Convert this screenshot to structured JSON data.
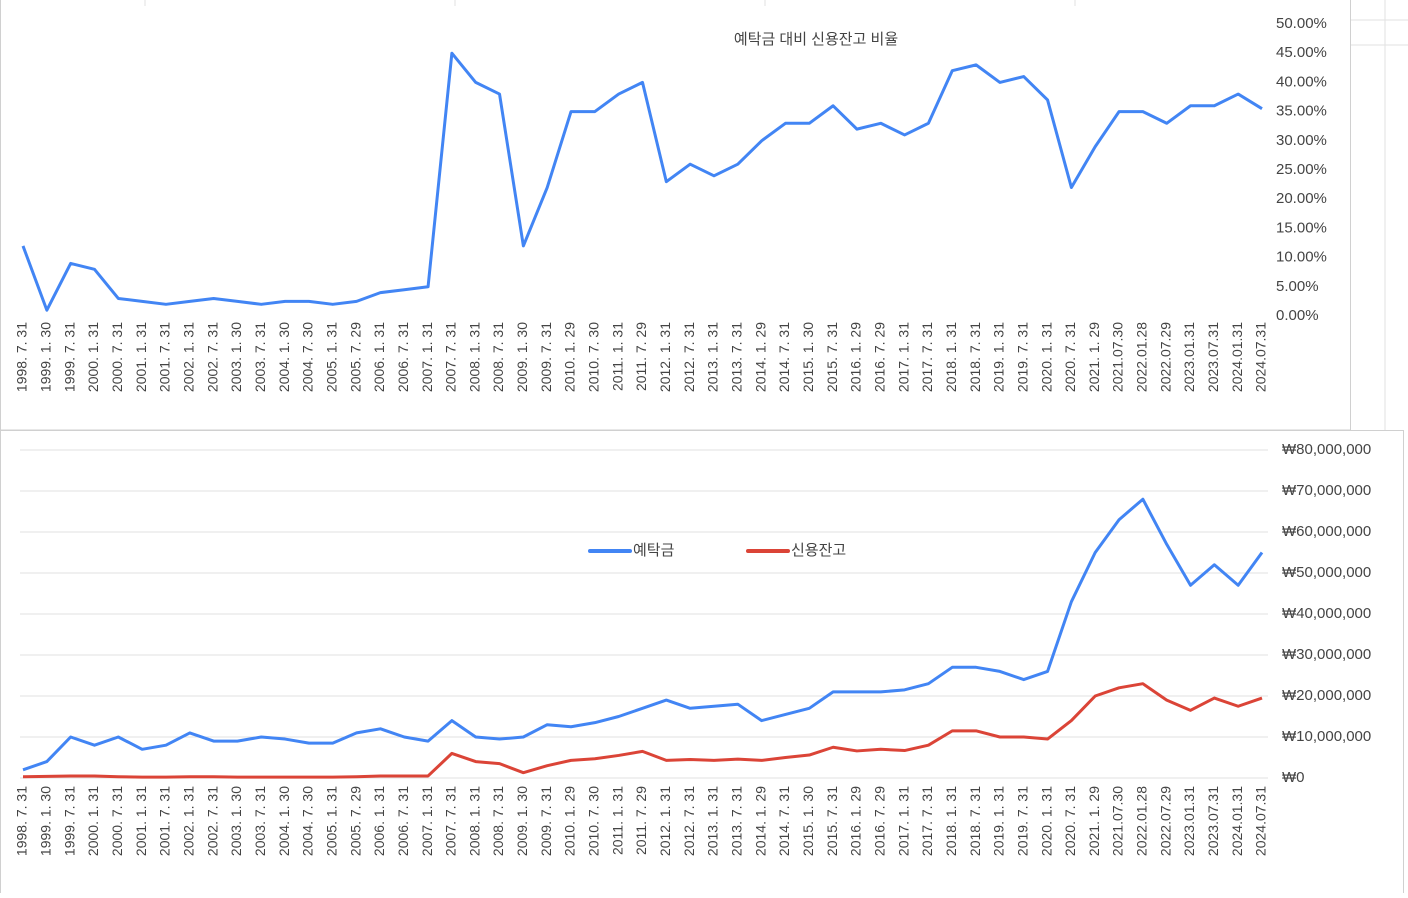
{
  "chart_data": [
    {
      "type": "line",
      "title": "예탁금 대비 신용잔고 비율",
      "categories": [
        "1998. 7. 31",
        "1999. 1. 30",
        "1999. 7. 31",
        "2000. 1. 31",
        "2000. 7. 31",
        "2001. 1. 31",
        "2001. 7. 31",
        "2002. 1. 31",
        "2002. 7. 31",
        "2003. 1. 30",
        "2003. 7. 31",
        "2004. 1. 30",
        "2004. 7. 30",
        "2005. 1. 31",
        "2005. 7. 29",
        "2006. 1. 31",
        "2006. 7. 31",
        "2007. 1. 31",
        "2007. 7. 31",
        "2008. 1. 31",
        "2008. 7. 31",
        "2009. 1. 30",
        "2009. 7. 31",
        "2010. 1. 29",
        "2010. 7. 30",
        "2011. 1. 31",
        "2011. 7. 29",
        "2012. 1. 31",
        "2012. 7. 31",
        "2013. 1. 31",
        "2013. 7. 31",
        "2014. 1. 29",
        "2014. 7. 31",
        "2015. 1. 30",
        "2015. 7. 31",
        "2016. 1. 29",
        "2016. 7. 29",
        "2017. 1. 31",
        "2017. 7. 31",
        "2018. 1. 31",
        "2018. 7. 31",
        "2019. 1. 31",
        "2019. 7. 31",
        "2020. 1. 31",
        "2020. 7. 31",
        "2021. 1. 29",
        "2021.07.30",
        "2022.01.28",
        "2022.07.29",
        "2023.01.31",
        "2023.07.31",
        "2024.01.31",
        "2024.07.31"
      ],
      "values": [
        12,
        1,
        9,
        8,
        3,
        2.5,
        2,
        2.5,
        3,
        2.5,
        2,
        2.5,
        2.5,
        2,
        2.5,
        4,
        4.5,
        5,
        45,
        40,
        38,
        12,
        22,
        35,
        35,
        38,
        40,
        23,
        26,
        24,
        26,
        30,
        33,
        33,
        36,
        32,
        33,
        31,
        33,
        42,
        43,
        40,
        41,
        37,
        22,
        29,
        35,
        35,
        33,
        36,
        36,
        38,
        35.5
      ],
      "color": "#4285f4",
      "ylim": [
        0,
        50
      ],
      "yticks": [
        {
          "value": 0,
          "label": "0.00%"
        },
        {
          "value": 5,
          "label": "5.00%"
        },
        {
          "value": 10,
          "label": "10.00%"
        },
        {
          "value": 15,
          "label": "15.00%"
        },
        {
          "value": 20,
          "label": "20.00%"
        },
        {
          "value": 25,
          "label": "25.00%"
        },
        {
          "value": 30,
          "label": "30.00%"
        },
        {
          "value": 35,
          "label": "35.00%"
        },
        {
          "value": 40,
          "label": "40.00%"
        },
        {
          "value": 45,
          "label": "45.00%"
        },
        {
          "value": 50,
          "label": "50.00%"
        }
      ],
      "grid": false
    },
    {
      "type": "line",
      "categories": [
        "1998. 7. 31",
        "1999. 1. 30",
        "1999. 7. 31",
        "2000. 1. 31",
        "2000. 7. 31",
        "2001. 1. 31",
        "2001. 7. 31",
        "2002. 1. 31",
        "2002. 7. 31",
        "2003. 1. 30",
        "2003. 7. 31",
        "2004. 1. 30",
        "2004. 7. 30",
        "2005. 1. 31",
        "2005. 7. 29",
        "2006. 1. 31",
        "2006. 7. 31",
        "2007. 1. 31",
        "2007. 7. 31",
        "2008. 1. 31",
        "2008. 7. 31",
        "2009. 1. 30",
        "2009. 7. 31",
        "2010. 1. 29",
        "2010. 7. 30",
        "2011. 1. 31",
        "2011. 7. 29",
        "2012. 1. 31",
        "2012. 7. 31",
        "2013. 1. 31",
        "2013. 7. 31",
        "2014. 1. 29",
        "2014. 7. 31",
        "2015. 1. 30",
        "2015. 7. 31",
        "2016. 1. 29",
        "2016. 7. 29",
        "2017. 1. 31",
        "2017. 7. 31",
        "2018. 1. 31",
        "2018. 7. 31",
        "2019. 1. 31",
        "2019. 7. 31",
        "2020. 1. 31",
        "2020. 7. 31",
        "2021. 1. 29",
        "2021.07.30",
        "2022.01.28",
        "2022.07.29",
        "2023.01.31",
        "2023.07.31",
        "2024.01.31",
        "2024.07.31"
      ],
      "series": [
        {
          "name": "예탁금",
          "color": "#4285f4",
          "values": [
            2000000,
            4000000,
            10000000,
            8000000,
            10000000,
            7000000,
            8000000,
            11000000,
            9000000,
            9000000,
            10000000,
            9500000,
            8500000,
            8500000,
            11000000,
            12000000,
            10000000,
            9000000,
            14000000,
            10000000,
            9500000,
            10000000,
            13000000,
            12500000,
            13500000,
            15000000,
            17000000,
            19000000,
            17000000,
            17500000,
            18000000,
            14000000,
            15500000,
            17000000,
            21000000,
            21000000,
            21000000,
            21500000,
            23000000,
            27000000,
            27000000,
            26000000,
            24000000,
            26000000,
            43000000,
            55000000,
            63000000,
            68000000,
            57000000,
            47000000,
            52000000,
            47000000,
            55000000
          ]
        },
        {
          "name": "신용잔고",
          "color": "#db4437",
          "values": [
            300000,
            400000,
            500000,
            500000,
            300000,
            200000,
            200000,
            300000,
            300000,
            200000,
            200000,
            200000,
            200000,
            200000,
            300000,
            500000,
            500000,
            500000,
            6000000,
            4000000,
            3500000,
            1300000,
            3000000,
            4300000,
            4700000,
            5500000,
            6500000,
            4300000,
            4500000,
            4300000,
            4600000,
            4300000,
            5000000,
            5600000,
            7500000,
            6600000,
            7000000,
            6700000,
            8000000,
            11500000,
            11500000,
            10000000,
            10000000,
            9500000,
            14000000,
            20000000,
            22000000,
            23000000,
            19000000,
            16500000,
            19500000,
            17500000,
            19500000
          ]
        }
      ],
      "ylim": [
        0,
        80000000
      ],
      "yticks": [
        {
          "value": 0,
          "label": "₩0"
        },
        {
          "value": 10000000,
          "label": "₩10,000,000"
        },
        {
          "value": 20000000,
          "label": "₩20,000,000"
        },
        {
          "value": 30000000,
          "label": "₩30,000,000"
        },
        {
          "value": 40000000,
          "label": "₩40,000,000"
        },
        {
          "value": 50000000,
          "label": "₩50,000,000"
        },
        {
          "value": 60000000,
          "label": "₩60,000,000"
        },
        {
          "value": 70000000,
          "label": "₩70,000,000"
        },
        {
          "value": 80000000,
          "label": "₩80,000,000"
        }
      ],
      "grid": true,
      "legend": "top"
    }
  ]
}
